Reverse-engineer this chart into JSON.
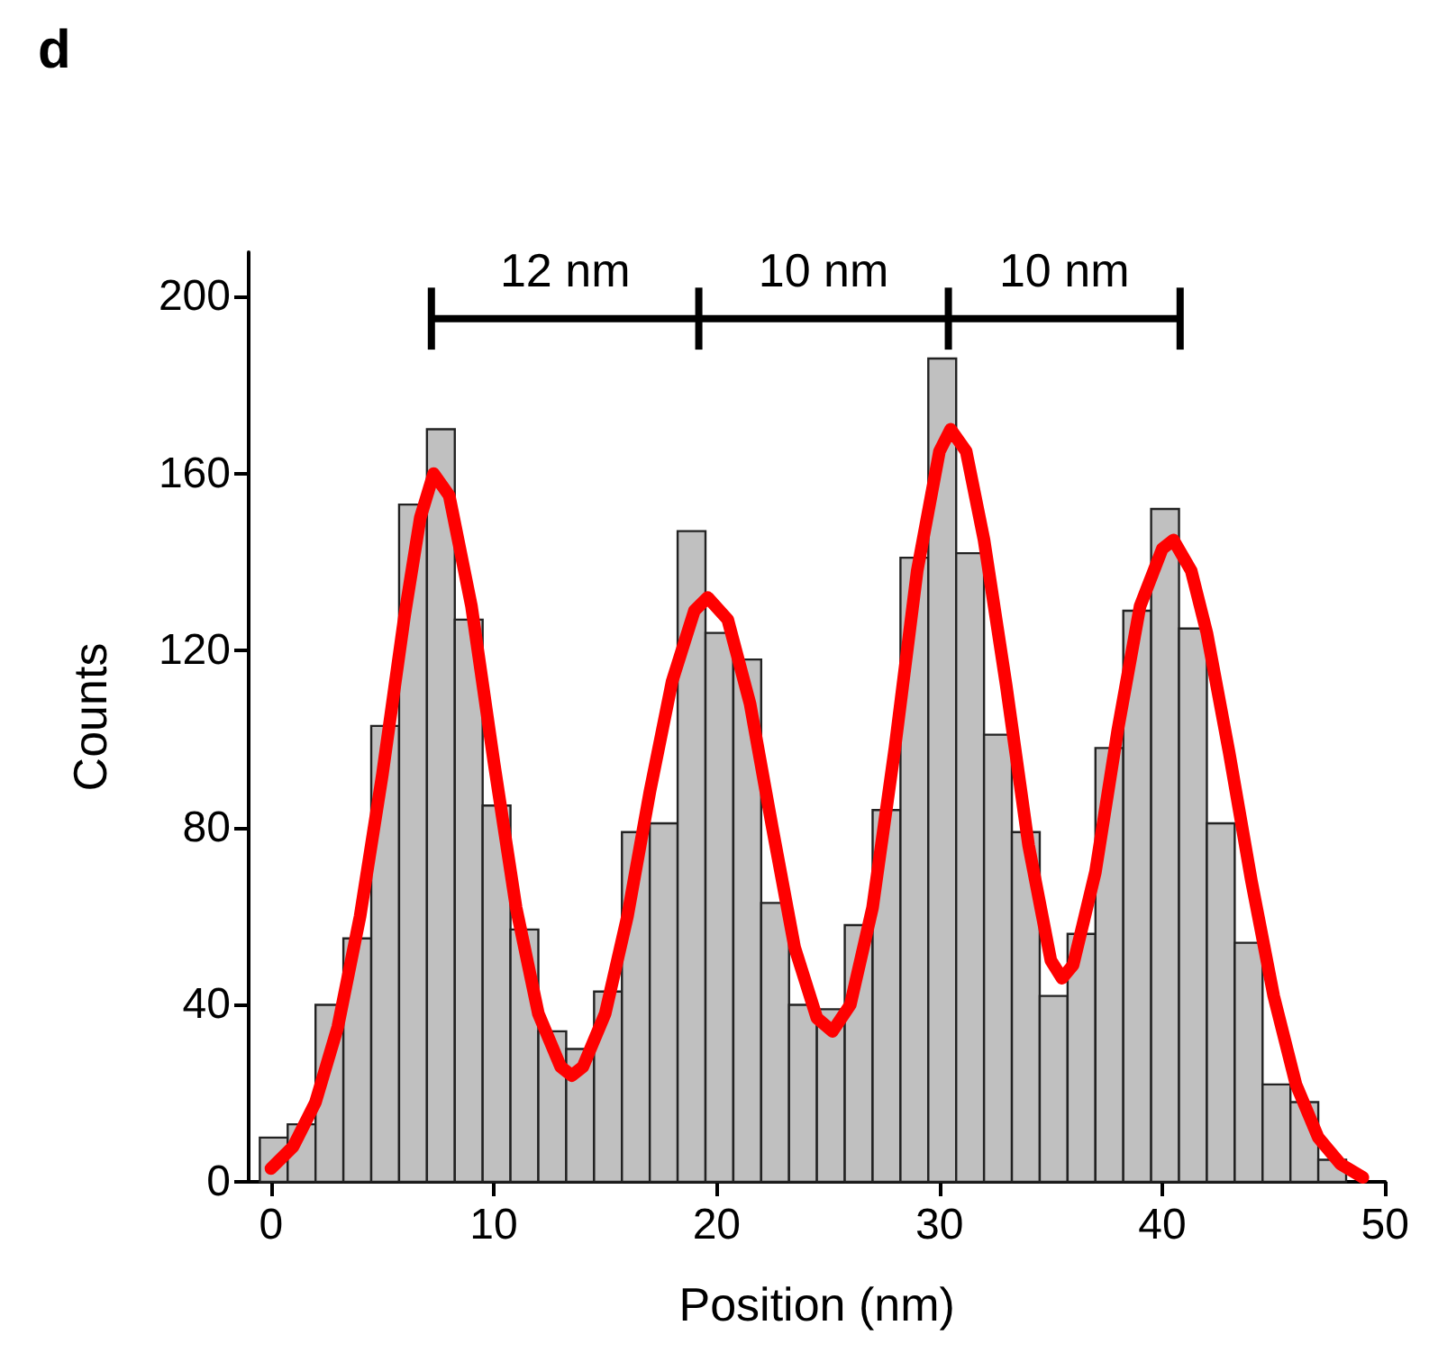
{
  "chart_data": {
    "type": "histogram",
    "title": "d",
    "xlabel": "Position (nm)",
    "ylabel": "Counts",
    "bins": [
      -0.5,
      0.75,
      2,
      3.25,
      4.5,
      5.75,
      7,
      8.25,
      9.5,
      10.75,
      12,
      13.25,
      14.5,
      15.75,
      17,
      18.25,
      19.5,
      20.75,
      22,
      23.25,
      24.5,
      25.75,
      27,
      28.25,
      29.5,
      30.75,
      32,
      33.25,
      34.5,
      35.75,
      37,
      38.25,
      39.5,
      40.75,
      42,
      43.25,
      44.5,
      45.75,
      47,
      48.25
    ],
    "values": [
      10,
      13,
      40,
      55,
      103,
      153,
      170,
      127,
      85,
      57,
      34,
      30,
      43,
      79,
      81,
      147,
      124,
      118,
      63,
      40,
      39,
      58,
      84,
      141,
      186,
      142,
      101,
      79,
      42,
      56,
      98,
      129,
      152,
      125,
      81,
      54,
      22,
      18,
      5
    ],
    "color": "#c0c0c0",
    "series": [
      {
        "type": "line",
        "color": "#ff0000",
        "x": [
          0,
          1,
          2,
          3,
          4,
          5,
          6,
          6.7,
          7.3,
          8,
          9,
          10,
          11,
          12,
          13,
          13.5,
          14,
          15,
          16,
          17,
          18,
          19,
          19.6,
          20.5,
          21.5,
          22.5,
          23.5,
          24.5,
          25.2,
          26,
          27,
          28,
          29,
          30,
          30.5,
          31.2,
          32,
          33,
          34,
          35,
          35.5,
          36,
          37,
          38,
          39,
          40,
          40.5,
          41.3,
          42,
          43,
          44,
          45,
          46,
          47,
          48,
          49
        ],
        "values": [
          3,
          8,
          18,
          35,
          60,
          92,
          128,
          150,
          160,
          155,
          130,
          95,
          62,
          38,
          26,
          24,
          26,
          38,
          60,
          88,
          113,
          129,
          132,
          127,
          108,
          80,
          53,
          37,
          34,
          40,
          62,
          98,
          138,
          165,
          170,
          165,
          145,
          112,
          76,
          50,
          46,
          49,
          70,
          102,
          130,
          143,
          145,
          138,
          124,
          97,
          68,
          42,
          22,
          10,
          4,
          1
        ]
      },
      {
        "type": "line",
        "color": "#000000",
        "x": [
          7.2,
          19.2,
          30.4,
          40.8
        ],
        "values": [
          195,
          195,
          195,
          195
        ],
        "errors": [
          7,
          7,
          7,
          7
        ]
      }
    ],
    "annotations": [
      "12 nm",
      "10 nm",
      "10 nm"
    ],
    "xlim": [
      -1,
      50
    ],
    "xticks": [
      0,
      10,
      20,
      30,
      40,
      50
    ],
    "ylim": [
      0,
      210
    ],
    "yticks": [
      0,
      40,
      80,
      120,
      160,
      200
    ],
    "marker": "none",
    "line_style": "solid",
    "grid": false
  }
}
